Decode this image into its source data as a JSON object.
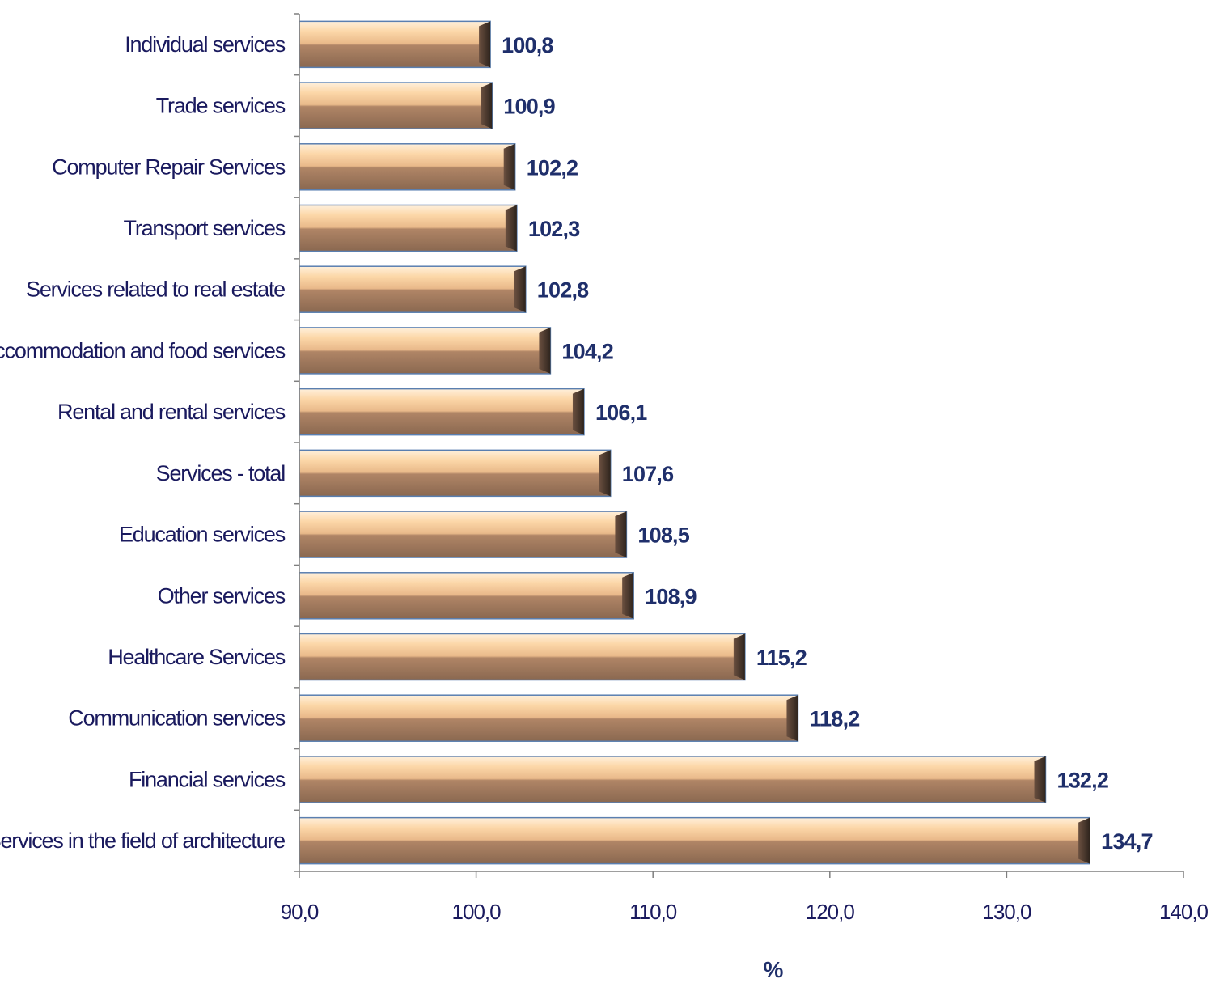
{
  "chart_data": {
    "type": "bar",
    "orientation": "horizontal",
    "categories": [
      "Individual services",
      "Trade services",
      "Computer Repair Services",
      "Transport services",
      "Services related to real estate",
      "Accommodation and food services",
      "Rental and rental services",
      "Services - total",
      "Education services",
      "Other services",
      "Healthcare Services",
      "Communication services",
      "Financial services",
      "Services in the field of architecture"
    ],
    "values": [
      100.8,
      100.9,
      102.2,
      102.3,
      102.8,
      104.2,
      106.1,
      107.6,
      108.5,
      108.9,
      115.2,
      118.2,
      132.2,
      134.7
    ],
    "value_labels": [
      "100,8",
      "100,9",
      "102,2",
      "102,3",
      "102,8",
      "104,2",
      "106,1",
      "107,6",
      "108,5",
      "108,9",
      "115,2",
      "118,2",
      "132,2",
      "134,7"
    ],
    "xlim": [
      90,
      140
    ],
    "ticks": [
      90,
      100,
      110,
      120,
      130,
      140
    ],
    "tick_labels": [
      "90,0",
      "100,0",
      "110,0",
      "120,0",
      "130,0",
      "140,0"
    ],
    "xlabel": "%",
    "ylabel": "",
    "title": "",
    "grid": false,
    "legend": "none",
    "colors": {
      "bar_light": "#fcd7a8",
      "bar_dark": "#8c6a50",
      "bar_edge": "#5a7fb0",
      "label_text": "#1a1a5e",
      "value_text": "#1f2f6b",
      "axis": "#7f7f7f"
    }
  }
}
